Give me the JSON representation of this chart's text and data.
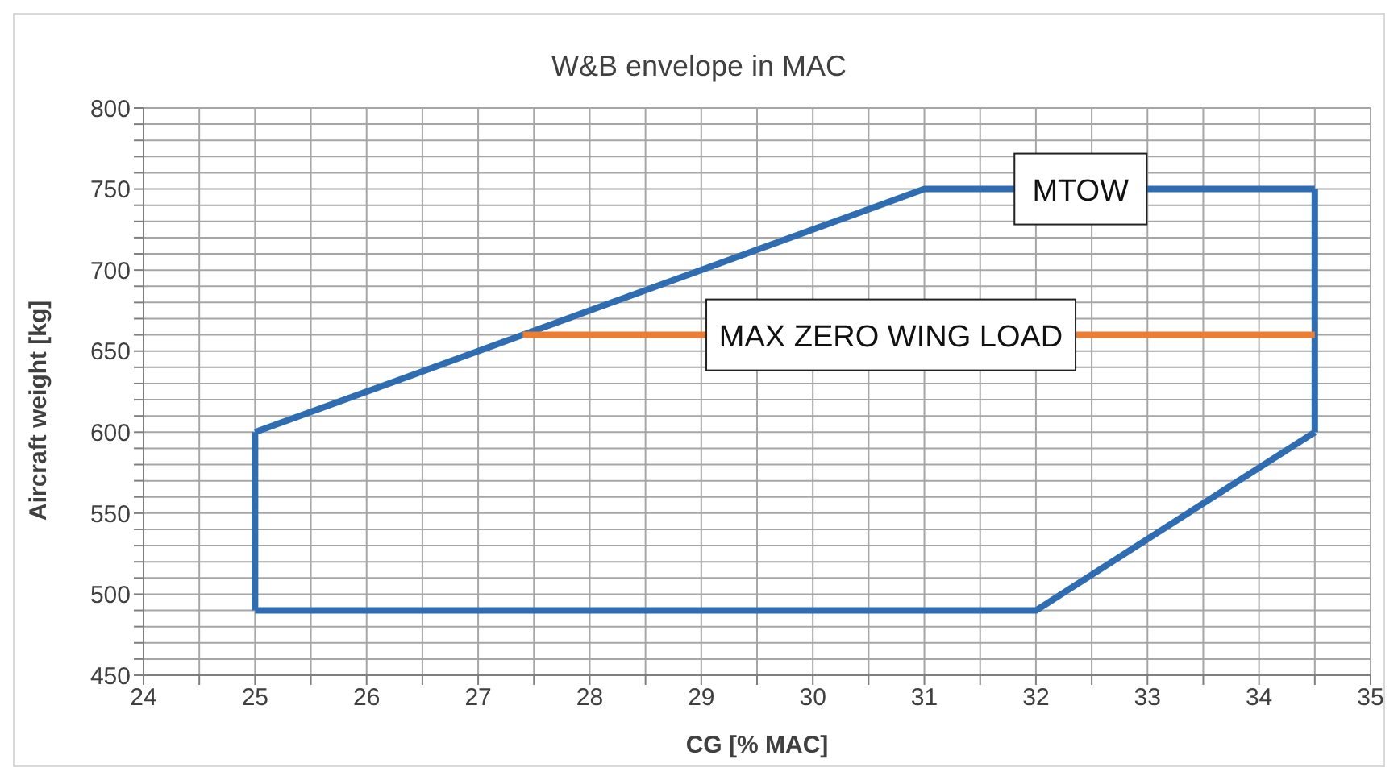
{
  "chart_data": {
    "type": "line",
    "title": "W&B envelope in MAC",
    "xlabel": "CG [% MAC]",
    "ylabel": "Aircraft weight [kg]",
    "series": [
      {
        "color": "#2f6db3",
        "x": [
          25,
          31,
          34.5
        ],
        "values": [
          600,
          750,
          750
        ]
      },
      {
        "color": "#2f6db3",
        "x": [
          34.5,
          34.5
        ],
        "values": [
          750,
          600
        ]
      },
      {
        "color": "#2f6db3",
        "x": [
          25,
          32,
          34.5
        ],
        "values": [
          490,
          490,
          600
        ]
      },
      {
        "color": "#2f6db3",
        "x": [
          25,
          25
        ],
        "values": [
          490,
          600
        ]
      },
      {
        "color": "#ed7d31",
        "x": [
          27.4,
          34.5
        ],
        "values": [
          660,
          660
        ]
      }
    ],
    "xlim": [
      24,
      35
    ],
    "xticks": [
      24,
      {
        "value": 24.5,
        "label": null
      },
      25,
      {
        "value": 25.5,
        "label": null
      },
      26,
      {
        "value": 26.5,
        "label": null
      },
      27,
      {
        "value": 27.5,
        "label": null
      },
      28,
      {
        "value": 28.5,
        "label": null
      },
      29,
      {
        "value": 29.5,
        "label": null
      },
      30,
      {
        "value": 30.5,
        "label": null
      },
      31,
      {
        "value": 31.5,
        "label": null
      },
      32,
      {
        "value": 32.5,
        "label": null
      },
      33,
      {
        "value": 33.5,
        "label": null
      },
      34,
      {
        "value": 34.5,
        "label": null
      },
      35
    ],
    "ylim": [
      450,
      800
    ],
    "yticks": [
      450,
      {
        "value": 460,
        "label": null
      },
      {
        "value": 470,
        "label": null
      },
      {
        "value": 480,
        "label": null
      },
      {
        "value": 490,
        "label": null
      },
      500,
      {
        "value": 510,
        "label": null
      },
      {
        "value": 520,
        "label": null
      },
      {
        "value": 530,
        "label": null
      },
      {
        "value": 540,
        "label": null
      },
      550,
      {
        "value": 560,
        "label": null
      },
      {
        "value": 570,
        "label": null
      },
      {
        "value": 580,
        "label": null
      },
      {
        "value": 590,
        "label": null
      },
      600,
      {
        "value": 610,
        "label": null
      },
      {
        "value": 620,
        "label": null
      },
      {
        "value": 630,
        "label": null
      },
      {
        "value": 640,
        "label": null
      },
      650,
      {
        "value": 660,
        "label": null
      },
      {
        "value": 670,
        "label": null
      },
      {
        "value": 680,
        "label": null
      },
      {
        "value": 690,
        "label": null
      },
      700,
      {
        "value": 710,
        "label": null
      },
      {
        "value": 720,
        "label": null
      },
      {
        "value": 730,
        "label": null
      },
      {
        "value": 740,
        "label": null
      },
      750,
      {
        "value": 760,
        "label": null
      },
      {
        "value": 770,
        "label": null
      },
      {
        "value": 780,
        "label": null
      },
      {
        "value": 790,
        "label": null
      },
      800
    ],
    "annotations": [
      {
        "text": "MTOW",
        "x": 32.4,
        "y": 750
      },
      {
        "text": "MAX ZERO WING LOAD",
        "x": 30.7,
        "y": 660
      }
    ],
    "grid": true,
    "marker": "none",
    "line_style": "solid"
  }
}
